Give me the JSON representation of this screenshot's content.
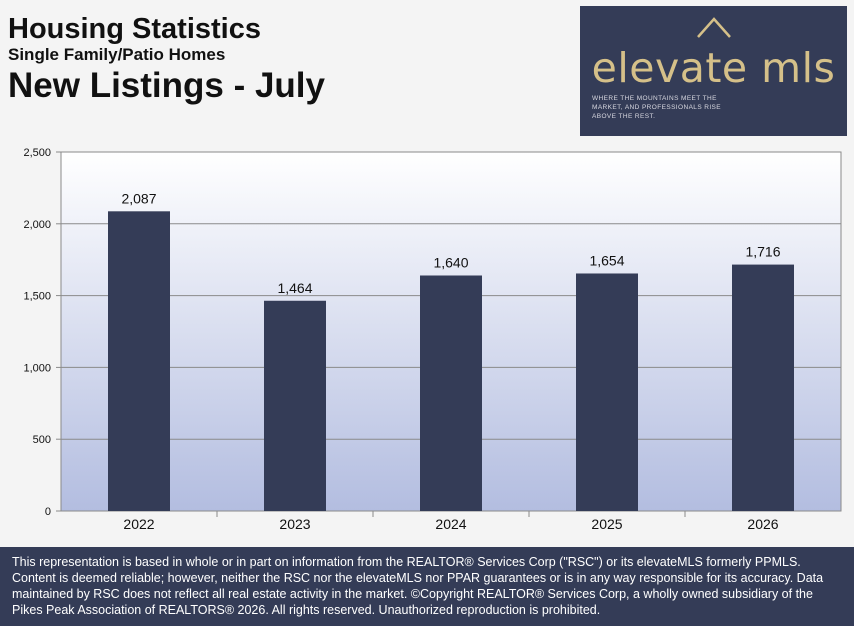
{
  "header": {
    "title": "Housing Statistics",
    "subtitle": "Single Family/Patio Homes",
    "chart_title": "New Listings - July"
  },
  "logo": {
    "wordmark": "elevate mls",
    "tagline": "WHERE THE MOUNTAINS MEET THE MARKET, AND PROFESSIONALS RISE ABOVE THE REST.",
    "background": "#343c57",
    "accent": "#d5c089"
  },
  "chart_data": {
    "type": "bar",
    "title": "New Listings - July",
    "categories": [
      "2022",
      "2023",
      "2024",
      "2025",
      "2026"
    ],
    "values": [
      2087,
      1464,
      1640,
      1654,
      1716
    ],
    "value_labels": [
      "2,087",
      "1,464",
      "1,640",
      "1,654",
      "1,716"
    ],
    "xlabel": "",
    "ylabel": "",
    "ylim": [
      0,
      2500
    ],
    "yticks": [
      0,
      500,
      1000,
      1500,
      2000,
      2500
    ],
    "ytick_labels": [
      "0",
      "500",
      "1,000",
      "1,500",
      "2,000",
      "2,500"
    ],
    "grid": true,
    "bar_color": "#343c57"
  },
  "footer": {
    "disclaimer": "This representation is based in whole or in part on information from the REALTOR® Services Corp (\"RSC\") or its elevateMLS formerly PPMLS. Content is deemed reliable; however, neither the RSC nor the elevateMLS nor PPAR guarantees or is in any way responsible for its accuracy. Data maintained by RSC does not reflect all real estate activity in the market. ©Copyright REALTOR® Services Corp, a wholly owned subsidiary of the Pikes Peak Association of REALTORS® 2026. All rights reserved. Unauthorized reproduction is prohibited."
  }
}
